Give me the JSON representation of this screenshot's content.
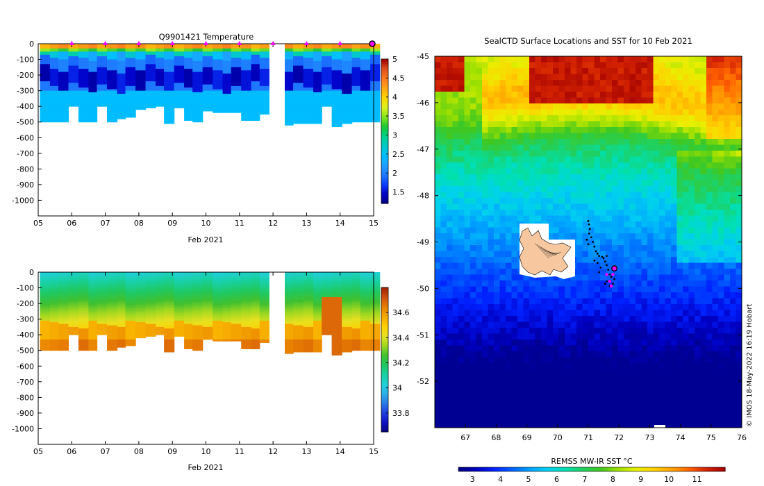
{
  "colors": {
    "temp_ramp": [
      "#00007f",
      "#0000c8",
      "#0a3cff",
      "#1e78ff",
      "#1ea0ff",
      "#00bfff",
      "#00c8c8",
      "#00d28c",
      "#19c832",
      "#82e61e",
      "#dcf01e",
      "#ffd700",
      "#ffa514",
      "#ff781e",
      "#e0501e",
      "#a00000"
    ],
    "sal_ramp": [
      "#050580",
      "#1010c0",
      "#2040e0",
      "#2a7ae8",
      "#2cb0e8",
      "#20d0d8",
      "#18d0a0",
      "#20c860",
      "#40c030",
      "#a0d820",
      "#e8e020",
      "#ffd000",
      "#f5a800",
      "#e88000",
      "#d05010",
      "#a02000"
    ],
    "land": "#f7c8a0",
    "marker": "#ff00ff",
    "track": "#000000"
  },
  "chart_data": [
    {
      "id": "temperature-section",
      "type": "heatmap",
      "title": "Q9901421  Temperature",
      "xlabel": "Feb 2021",
      "ylabel": "",
      "x_ticks": [
        "05",
        "06",
        "07",
        "08",
        "09",
        "10",
        "11",
        "12",
        "13",
        "14",
        "15"
      ],
      "x_range": [
        5,
        15
      ],
      "y_ticks": [
        0,
        -100,
        -200,
        -300,
        -400,
        -500,
        -600,
        -700,
        -800,
        -900,
        -1000
      ],
      "y_range": [
        -1100,
        0
      ],
      "colorbar": {
        "ticks": [
          "1.5",
          "2",
          "2.5",
          "3",
          "3.5",
          "4",
          "4.5",
          "5"
        ],
        "range": [
          1.2,
          5
        ]
      },
      "profile_times": [
        5.05,
        5.35,
        5.6,
        5.9,
        6.2,
        6.5,
        6.75,
        7.05,
        7.35,
        7.6,
        7.9,
        8.2,
        8.5,
        8.75,
        9.05,
        9.35,
        9.6,
        9.9,
        10.2,
        10.5,
        10.75,
        11.05,
        11.35,
        11.6,
        12.35,
        12.6,
        12.9,
        13.2,
        13.45,
        13.75,
        14.05,
        14.35,
        14.6,
        14.9
      ],
      "profile_depths": [
        500,
        500,
        495,
        400,
        500,
        495,
        400,
        500,
        480,
        470,
        420,
        405,
        400,
        510,
        405,
        490,
        495,
        430,
        440,
        440,
        440,
        490,
        490,
        450,
        520,
        505,
        510,
        505,
        400,
        530,
        505,
        500,
        495,
        500
      ],
      "gap": [
        11.85,
        12.25
      ],
      "surface_markers": [
        6,
        7,
        8,
        9,
        10,
        11,
        12,
        13,
        14
      ],
      "current_marker": 15
    },
    {
      "id": "salinity-section",
      "type": "heatmap",
      "title": "",
      "xlabel": "Feb 2021",
      "ylabel": "",
      "x_ticks": [
        "05",
        "06",
        "07",
        "08",
        "09",
        "10",
        "11",
        "12",
        "13",
        "14",
        "15"
      ],
      "x_range": [
        5,
        15
      ],
      "y_ticks": [
        0,
        -100,
        -200,
        -300,
        -400,
        -500,
        -600,
        -700,
        -800,
        -900,
        -1000
      ],
      "y_range": [
        -1100,
        0
      ],
      "colorbar": {
        "ticks": [
          "33.8",
          "34",
          "34.2",
          "34.4",
          "34.6"
        ],
        "range": [
          33.65,
          34.8
        ]
      },
      "gap": [
        11.85,
        12.25
      ]
    },
    {
      "id": "sst-map",
      "type": "heatmap",
      "title": "SealCTD Surface Locations and SST for 10 Feb 2021",
      "xlabel": "",
      "ylabel": "",
      "lon_ticks": [
        "67",
        "68",
        "69",
        "70",
        "71",
        "72",
        "73",
        "74",
        "75",
        "76"
      ],
      "lon_range": [
        66,
        76
      ],
      "lat_ticks": [
        "-45",
        "-46",
        "-47",
        "-48",
        "-49",
        "-50",
        "-51",
        "-52"
      ],
      "lat_range": [
        -53,
        -45
      ],
      "colorbar": {
        "label": "REMSS MW-IR SST °C",
        "ticks": [
          "3",
          "4",
          "5",
          "6",
          "7",
          "8",
          "9",
          "10",
          "11"
        ],
        "range": [
          2.5,
          12
        ]
      },
      "track_points": [
        [
          71.0,
          -48.55
        ],
        [
          71.02,
          -48.62
        ],
        [
          71.05,
          -48.72
        ],
        [
          71.03,
          -48.82
        ],
        [
          71.1,
          -48.9
        ],
        [
          71.15,
          -49.0
        ],
        [
          71.2,
          -49.1
        ],
        [
          71.25,
          -49.2
        ],
        [
          71.3,
          -49.25
        ],
        [
          71.35,
          -49.3
        ],
        [
          71.45,
          -49.32
        ],
        [
          71.5,
          -49.35
        ],
        [
          71.6,
          -49.3
        ],
        [
          71.55,
          -49.42
        ],
        [
          71.6,
          -49.5
        ],
        [
          71.65,
          -49.6
        ],
        [
          71.7,
          -49.7
        ],
        [
          71.75,
          -49.75
        ],
        [
          71.6,
          -49.85
        ],
        [
          71.55,
          -49.9
        ],
        [
          71.7,
          -49.95
        ],
        [
          71.8,
          -49.9
        ],
        [
          71.85,
          -49.8
        ],
        [
          70.95,
          -48.95
        ],
        [
          71.0,
          -49.05
        ],
        [
          71.2,
          -49.4
        ],
        [
          71.3,
          -49.45
        ],
        [
          71.4,
          -49.55
        ],
        [
          71.35,
          -49.65
        ],
        [
          71.9,
          -49.55
        ]
      ],
      "marker_points": [
        [
          71.6,
          -49.7
        ],
        [
          71.7,
          -49.85
        ],
        [
          71.75,
          -49.95
        ],
        [
          71.8,
          -49.7
        ]
      ],
      "current_position": [
        71.85,
        -49.57
      ]
    }
  ],
  "credit": "© IMOS 18-May-2022 16:19 Hobart"
}
